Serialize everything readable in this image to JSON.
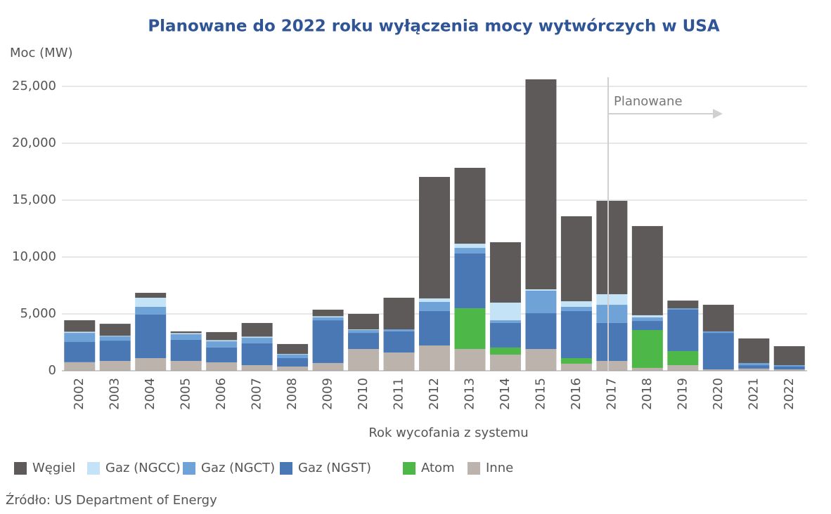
{
  "chart_data": {
    "type": "bar",
    "stacked": true,
    "title": "Planowane do 2022 roku wyłączenia mocy wytwórczych w USA",
    "y_label": "Moc (MW)",
    "x_label": "Rok wycofania z systemu",
    "annotation": "Planowane",
    "source": "Źródło: US Department of Energy",
    "categories": [
      "2002",
      "2003",
      "2004",
      "2005",
      "2006",
      "2007",
      "2008",
      "2009",
      "2010",
      "2011",
      "2012",
      "2013",
      "2014",
      "2015",
      "2016",
      "2017",
      "2018",
      "2019",
      "2020",
      "2021",
      "2022"
    ],
    "series": [
      {
        "name": "Węgiel",
        "color": "#5f5a5a",
        "values": [
          1010,
          1060,
          430,
          150,
          710,
          1200,
          880,
          580,
          1370,
          2780,
          10680,
          6670,
          5310,
          18460,
          7470,
          8210,
          7840,
          680,
          2340,
          2160,
          1670
        ]
      },
      {
        "name": "Gaz (NGCC)",
        "color": "#c5e3f6",
        "values": [
          100,
          50,
          800,
          100,
          100,
          100,
          50,
          100,
          50,
          0,
          310,
          370,
          1550,
          120,
          490,
          930,
          190,
          0,
          0,
          0,
          0
        ]
      },
      {
        "name": "Gaz (NGCT)",
        "color": "#6fa3d8",
        "values": [
          800,
          370,
          680,
          490,
          550,
          490,
          310,
          250,
          250,
          180,
          800,
          490,
          240,
          1980,
          370,
          1600,
          310,
          120,
          130,
          190,
          120
        ]
      },
      {
        "name": "Gaz (NGST)",
        "color": "#4a78b5",
        "values": [
          1780,
          1790,
          3830,
          1860,
          1300,
          1920,
          740,
          3760,
          1420,
          1860,
          3030,
          4820,
          2160,
          3150,
          4140,
          3340,
          800,
          3640,
          3210,
          300,
          250
        ]
      },
      {
        "name": "Atom",
        "color": "#4db848",
        "values": [
          0,
          0,
          0,
          0,
          0,
          0,
          0,
          0,
          0,
          0,
          0,
          3580,
          620,
          0,
          490,
          0,
          3330,
          1240,
          0,
          0,
          0
        ]
      },
      {
        "name": "Inne",
        "color": "#bcb3ad",
        "values": [
          750,
          860,
          1110,
          860,
          740,
          490,
          370,
          680,
          1910,
          1600,
          2220,
          1910,
          1420,
          1910,
          620,
          860,
          250,
          490,
          120,
          190,
          120
        ]
      }
    ],
    "ylim": [
      0,
      26000
    ],
    "yticks": [
      0,
      {
        "value": 5000,
        "label": "5,000"
      },
      {
        "value": 10000,
        "label": "10,000"
      },
      {
        "value": 15000,
        "label": "15,000"
      },
      {
        "value": 20000,
        "label": "20,000"
      },
      {
        "value": 25000,
        "label": "25,000"
      }
    ],
    "grid": true
  }
}
